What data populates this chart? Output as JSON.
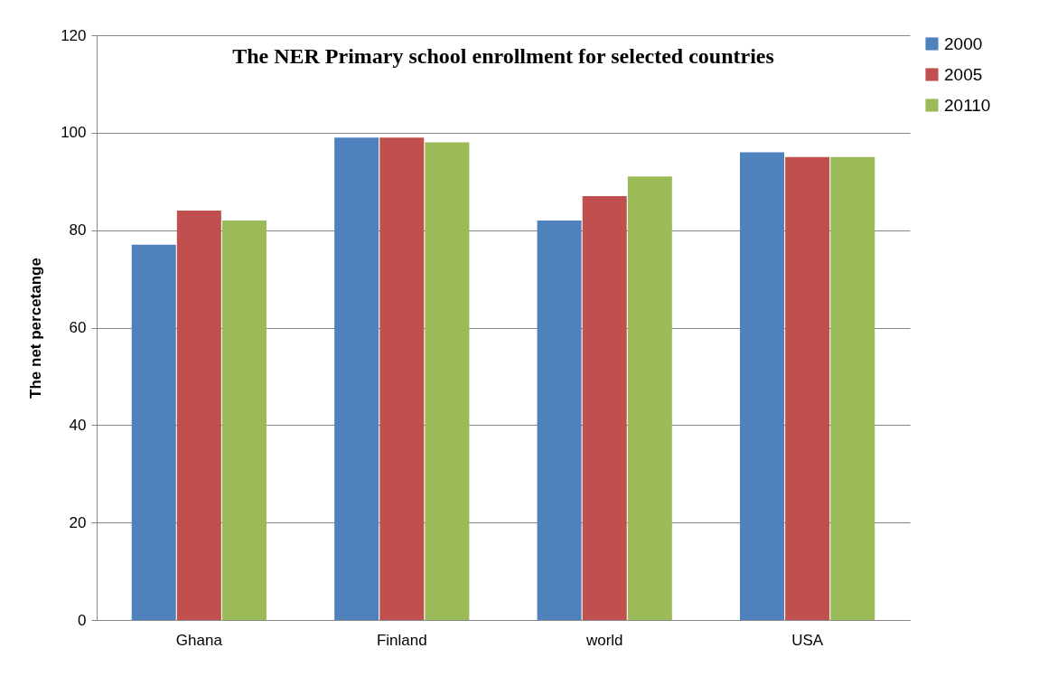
{
  "chart_data": {
    "type": "bar",
    "title": "The NER Primary school enrollment for selected countries",
    "ylabel": "The net percetange",
    "categories": [
      "Ghana",
      "Finland",
      "world",
      "USA"
    ],
    "series": [
      {
        "name": "2000",
        "color": "#4f81bd",
        "values": [
          77,
          99,
          82,
          96
        ]
      },
      {
        "name": "2005",
        "color": "#c0504d",
        "values": [
          84,
          99,
          87,
          95
        ]
      },
      {
        "name": "20110",
        "color": "#9bbb59",
        "values": [
          82,
          98,
          91,
          95
        ]
      }
    ],
    "ylim": [
      0,
      120
    ],
    "yticks": [
      0,
      20,
      40,
      60,
      80,
      100,
      120
    ],
    "grid": "y",
    "legend": "right"
  }
}
